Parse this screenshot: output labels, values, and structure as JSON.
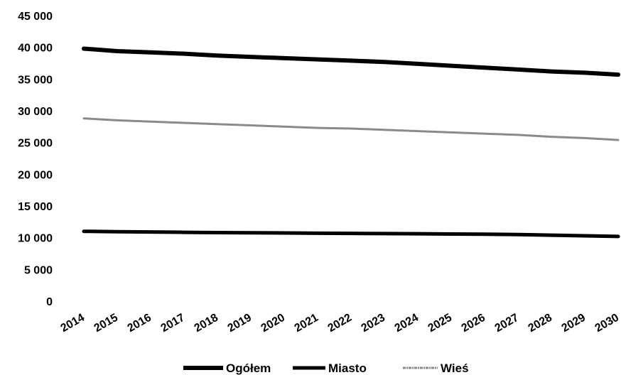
{
  "chart_data": {
    "type": "line",
    "categories": [
      "2014",
      "2015",
      "2016",
      "2017",
      "2018",
      "2019",
      "2020",
      "2021",
      "2022",
      "2023",
      "2024",
      "2025",
      "2026",
      "2027",
      "2028",
      "2029",
      "2030"
    ],
    "ylim": [
      0,
      45000
    ],
    "yticks": [
      0,
      5000,
      10000,
      15000,
      20000,
      25000,
      30000,
      35000,
      40000,
      45000
    ],
    "ytick_labels": [
      "0",
      "5 000",
      "10 000",
      "15 000",
      "20 000",
      "25 000",
      "30 000",
      "35 000",
      "40 000",
      "45 000"
    ],
    "grid": false,
    "legend_position": "bottom",
    "series": [
      {
        "name": "Ogółem",
        "color": "#000000",
        "style": "solid-thick",
        "values": [
          39800,
          39400,
          39200,
          39000,
          38700,
          38500,
          38300,
          38100,
          37900,
          37700,
          37400,
          37100,
          36800,
          36500,
          36200,
          36000,
          35700
        ]
      },
      {
        "name": "Miasto",
        "color": "#000000",
        "style": "solid",
        "values": [
          11000,
          10950,
          10900,
          10850,
          10800,
          10780,
          10750,
          10700,
          10680,
          10650,
          10620,
          10580,
          10550,
          10500,
          10400,
          10300,
          10200
        ]
      },
      {
        "name": "Wieś",
        "color": "#8a8a8a",
        "style": "textured",
        "values": [
          28800,
          28500,
          28300,
          28100,
          27900,
          27700,
          27500,
          27300,
          27200,
          27000,
          26800,
          26600,
          26400,
          26200,
          25900,
          25700,
          25400
        ]
      }
    ]
  }
}
